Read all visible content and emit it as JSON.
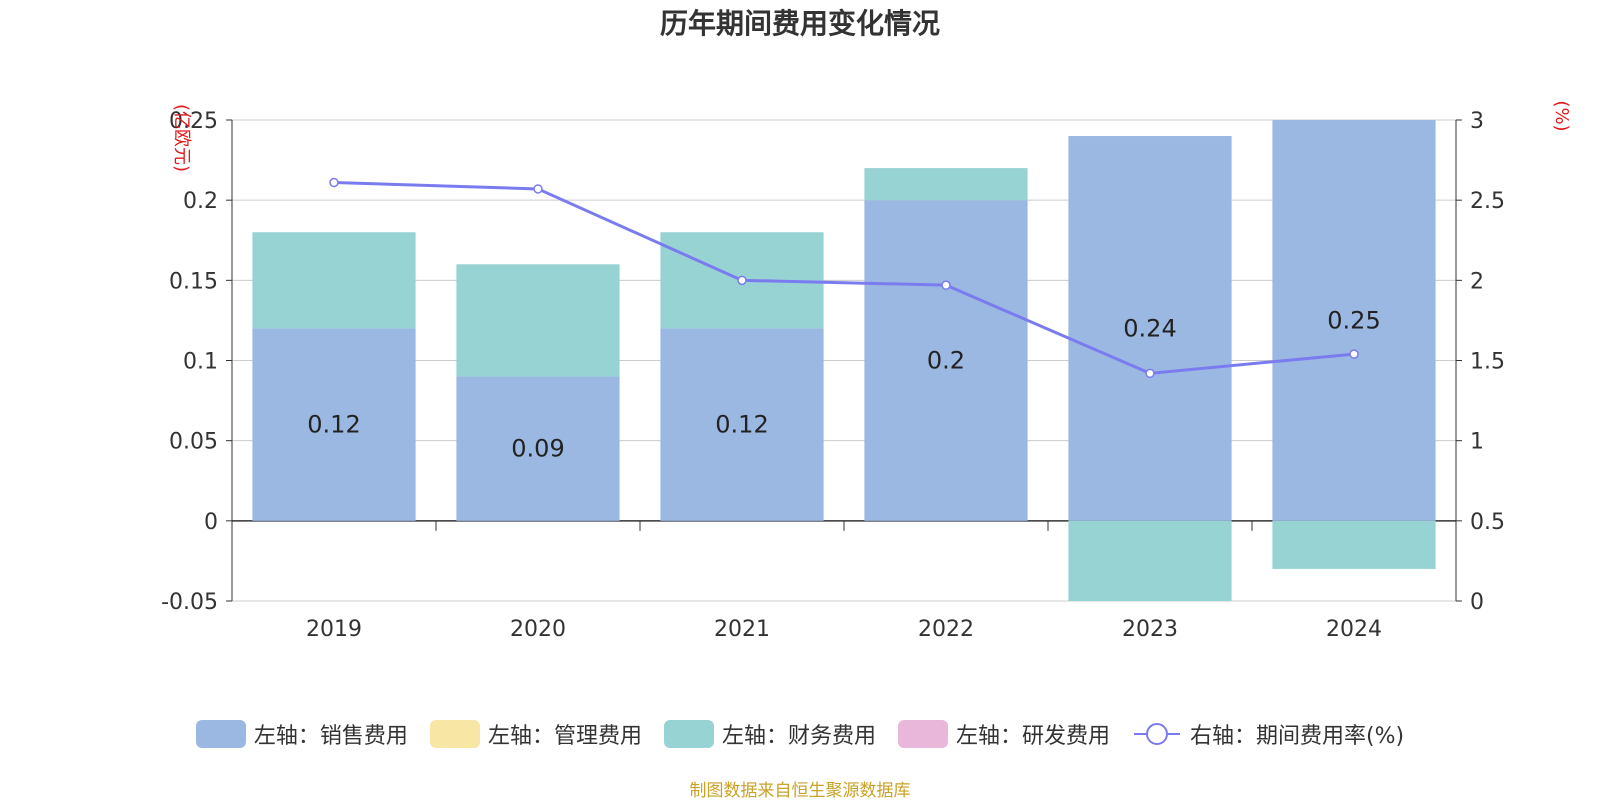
{
  "chart_data": {
    "type": "bar",
    "title": "历年期间费用变化情况",
    "source_note": "制图数据来自恒生聚源数据库",
    "left_axis_unit": "(亿欧元)",
    "right_axis_unit": "(%)",
    "categories": [
      "2019",
      "2020",
      "2021",
      "2022",
      "2023",
      "2024"
    ],
    "left_ylim": [
      -0.05,
      0.25
    ],
    "left_ticks": [
      "0.25",
      "0.2",
      "0.15",
      "0.1",
      "0.05",
      "0",
      "-0.05"
    ],
    "left_tick_values": [
      0.25,
      0.2,
      0.15,
      0.1,
      0.05,
      0,
      -0.05
    ],
    "right_ylim": [
      0,
      3
    ],
    "right_ticks": [
      "3",
      "2.5",
      "2",
      "1.5",
      "1",
      "0.5",
      "0"
    ],
    "right_tick_values": [
      3,
      2.5,
      2,
      1.5,
      1,
      0.5,
      0
    ],
    "grid": true,
    "legend_position": "bottom",
    "series": [
      {
        "name": "左轴：销售费用",
        "type": "bar",
        "axis": "left",
        "color": "#9bb8e3",
        "values": [
          0.12,
          0.09,
          0.12,
          0.2,
          0.24,
          0.25
        ],
        "labels": [
          "0.12",
          "0.09",
          "0.12",
          "0.2",
          "0.24",
          "0.25"
        ]
      },
      {
        "name": "左轴：管理费用",
        "type": "bar",
        "axis": "left",
        "color": "#f8e6a5",
        "values": [
          0,
          0,
          0,
          0,
          0,
          0
        ]
      },
      {
        "name": "左轴：财务费用",
        "type": "bar",
        "axis": "left",
        "color": "#98d3d4",
        "values": [
          0.06,
          0.07,
          0.06,
          0.02,
          -0.05,
          -0.03
        ]
      },
      {
        "name": "左轴：研发费用",
        "type": "bar",
        "axis": "left",
        "color": "#e8b7d9",
        "values": [
          0,
          0,
          0,
          0,
          0,
          0
        ]
      },
      {
        "name": "右轴：期间费用率(%)",
        "type": "line",
        "axis": "right",
        "color": "#7b7bf0",
        "values": [
          2.61,
          2.57,
          2.0,
          1.97,
          1.42,
          1.54
        ]
      }
    ]
  }
}
